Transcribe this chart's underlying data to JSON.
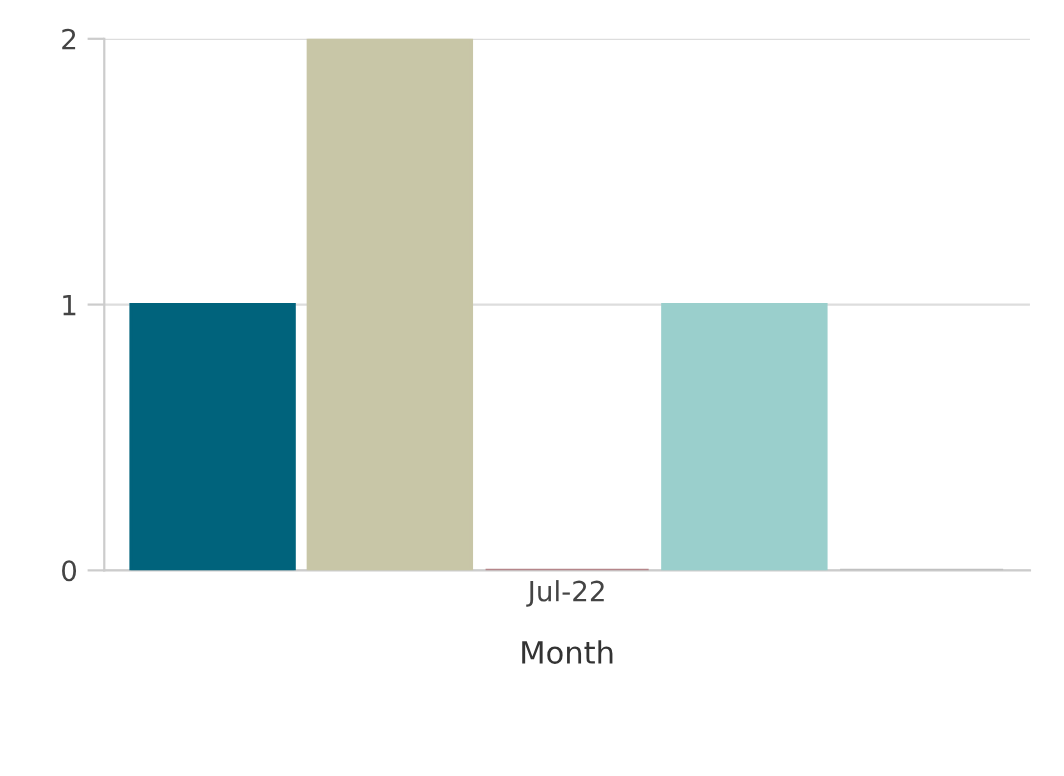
{
  "chart_data": {
    "type": "bar",
    "xlabel": "Month",
    "categories": [
      "Jul-22"
    ],
    "series": [
      {
        "color": "#00637c",
        "values": [
          1
        ]
      },
      {
        "color": "#c8c6a7",
        "values": [
          2
        ]
      },
      {
        "color": "#b5868a",
        "values": [
          0
        ]
      },
      {
        "color": "#9acfcc",
        "values": [
          1
        ]
      },
      {
        "color": "#c0c0c0",
        "values": [
          0
        ]
      }
    ],
    "ylim": [
      0,
      2
    ],
    "yticks": [
      0,
      1,
      2
    ],
    "grid": "y"
  }
}
